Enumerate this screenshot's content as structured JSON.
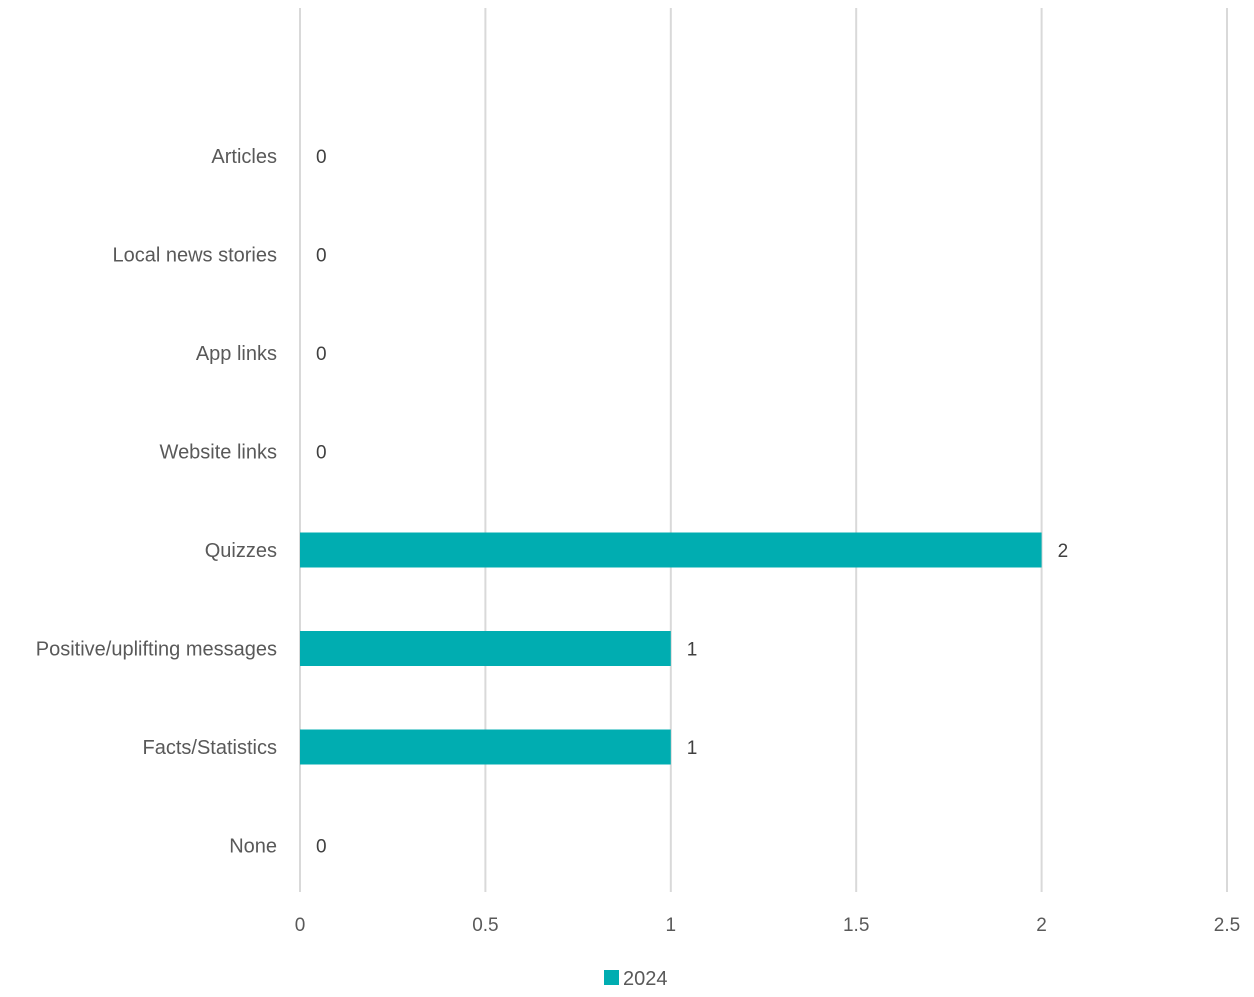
{
  "chart_data": {
    "type": "bar",
    "orientation": "horizontal",
    "categories": [
      "Articles",
      "Local news stories",
      "App links",
      "Website links",
      "Quizzes",
      "Positive/uplifting messages",
      "Facts/Statistics",
      "None"
    ],
    "series": [
      {
        "name": "2024",
        "values": [
          0,
          0,
          0,
          0,
          2,
          1,
          1,
          0
        ],
        "color": "#00ADB1"
      }
    ],
    "xlim": [
      0,
      2.5
    ],
    "x_ticks": [
      "0",
      "0.5",
      "1",
      "1.5",
      "2",
      "2.5"
    ],
    "grid": "vertical",
    "legend_position": "bottom",
    "data_labels": true
  }
}
